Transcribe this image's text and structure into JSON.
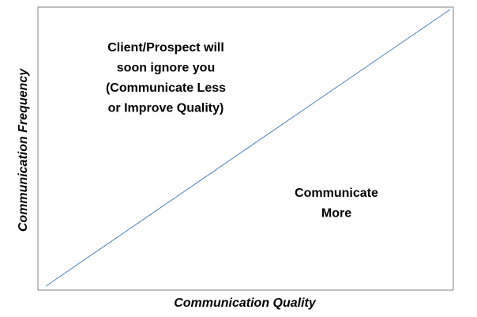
{
  "axes": {
    "x_label": "Communication Quality",
    "y_label": "Communication Frequency"
  },
  "regions": [
    {
      "lines": [
        "Client/Prospect will",
        "soon ignore you",
        "(Communicate Less",
        "or Improve Quality)"
      ]
    },
    {
      "lines": [
        "Communicate",
        "More"
      ]
    }
  ]
}
